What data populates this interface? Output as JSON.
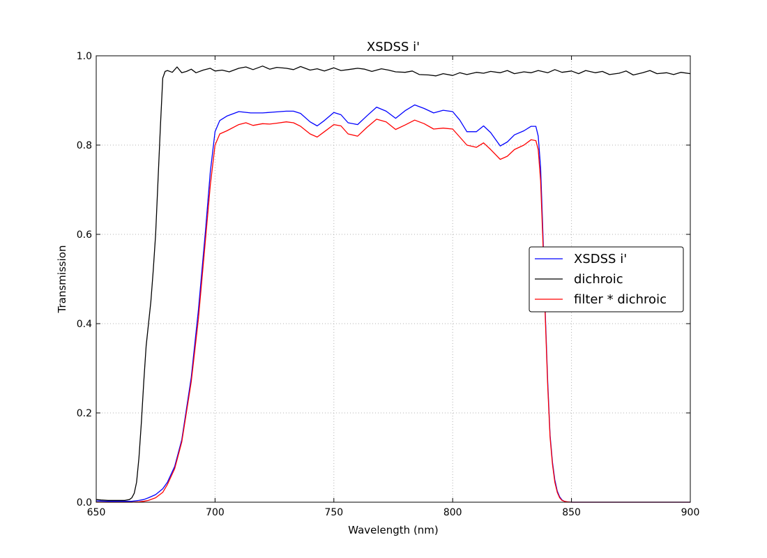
{
  "chart_data": {
    "type": "line",
    "title": "XSDSS i'",
    "xlabel": "Wavelength (nm)",
    "ylabel": "Transmission",
    "xlim": [
      650,
      900
    ],
    "ylim": [
      0.0,
      1.0
    ],
    "x_ticks": [
      650,
      700,
      750,
      800,
      850,
      900
    ],
    "x_tick_labels": [
      "650",
      "700",
      "750",
      "800",
      "850",
      "900"
    ],
    "y_ticks": [
      0.0,
      0.2,
      0.4,
      0.6,
      0.8,
      1.0
    ],
    "y_tick_labels": [
      "0.0",
      "0.2",
      "0.4",
      "0.6",
      "0.8",
      "1.0"
    ],
    "grid": true,
    "legend_position": "center-right",
    "series": [
      {
        "name": "XSDSS i'",
        "color": "#0000ff",
        "x": [
          650,
          655,
          660,
          665,
          668,
          670,
          672,
          675,
          678,
          680,
          683,
          686,
          690,
          693,
          696,
          698,
          700,
          702,
          705,
          710,
          715,
          720,
          725,
          730,
          733,
          736,
          740,
          743,
          746,
          750,
          753,
          756,
          760,
          764,
          768,
          772,
          776,
          780,
          784,
          788,
          792,
          796,
          800,
          803,
          806,
          810,
          813,
          816,
          820,
          823,
          826,
          830,
          833,
          835,
          836,
          837,
          838,
          839,
          840,
          841,
          842,
          843,
          844,
          845,
          846,
          847,
          848,
          850,
          860,
          870,
          880,
          890,
          900
        ],
        "y": [
          0.003,
          0.002,
          0.002,
          0.002,
          0.004,
          0.006,
          0.01,
          0.017,
          0.03,
          0.045,
          0.08,
          0.14,
          0.28,
          0.43,
          0.61,
          0.74,
          0.83,
          0.855,
          0.865,
          0.875,
          0.872,
          0.872,
          0.874,
          0.876,
          0.876,
          0.871,
          0.852,
          0.843,
          0.855,
          0.873,
          0.868,
          0.85,
          0.846,
          0.866,
          0.885,
          0.876,
          0.86,
          0.877,
          0.89,
          0.882,
          0.872,
          0.878,
          0.875,
          0.856,
          0.83,
          0.83,
          0.843,
          0.828,
          0.798,
          0.807,
          0.823,
          0.832,
          0.842,
          0.842,
          0.82,
          0.75,
          0.6,
          0.42,
          0.27,
          0.15,
          0.09,
          0.05,
          0.025,
          0.012,
          0.005,
          0.002,
          0.001,
          0.0,
          0.0,
          0.0,
          0.0,
          0.0,
          0.0
        ]
      },
      {
        "name": "dichroic",
        "color": "#000000",
        "x": [
          650,
          652,
          655,
          658,
          660,
          662,
          664,
          665,
          666,
          667,
          668,
          669,
          670,
          671,
          672,
          673,
          674,
          675,
          676,
          677,
          678,
          679,
          680,
          682,
          684,
          686,
          688,
          690,
          692,
          695,
          698,
          700,
          703,
          706,
          710,
          713,
          716,
          720,
          723,
          726,
          730,
          733,
          736,
          740,
          743,
          746,
          750,
          753,
          756,
          760,
          763,
          766,
          770,
          773,
          776,
          780,
          783,
          786,
          790,
          793,
          796,
          800,
          803,
          806,
          810,
          813,
          816,
          820,
          823,
          826,
          830,
          833,
          836,
          840,
          843,
          846,
          850,
          853,
          856,
          860,
          863,
          866,
          870,
          873,
          876,
          880,
          883,
          886,
          890,
          893,
          896,
          900
        ],
        "y": [
          0.006,
          0.005,
          0.004,
          0.004,
          0.004,
          0.004,
          0.006,
          0.01,
          0.02,
          0.045,
          0.1,
          0.18,
          0.27,
          0.35,
          0.4,
          0.45,
          0.52,
          0.6,
          0.72,
          0.84,
          0.95,
          0.965,
          0.967,
          0.963,
          0.975,
          0.962,
          0.965,
          0.97,
          0.962,
          0.968,
          0.972,
          0.966,
          0.968,
          0.964,
          0.972,
          0.975,
          0.969,
          0.977,
          0.97,
          0.974,
          0.972,
          0.969,
          0.976,
          0.968,
          0.971,
          0.966,
          0.973,
          0.967,
          0.969,
          0.972,
          0.97,
          0.965,
          0.971,
          0.968,
          0.964,
          0.963,
          0.966,
          0.958,
          0.957,
          0.955,
          0.96,
          0.956,
          0.962,
          0.958,
          0.963,
          0.961,
          0.965,
          0.962,
          0.967,
          0.96,
          0.964,
          0.962,
          0.967,
          0.962,
          0.969,
          0.963,
          0.966,
          0.96,
          0.967,
          0.962,
          0.965,
          0.958,
          0.961,
          0.966,
          0.957,
          0.962,
          0.967,
          0.96,
          0.962,
          0.958,
          0.963,
          0.96
        ]
      },
      {
        "name": "filter * dichroic",
        "color": "#ff0000",
        "x": [
          650,
          655,
          660,
          665,
          668,
          670,
          672,
          675,
          678,
          680,
          683,
          686,
          690,
          693,
          696,
          698,
          700,
          702,
          705,
          710,
          713,
          716,
          720,
          723,
          726,
          730,
          733,
          736,
          740,
          743,
          746,
          750,
          753,
          756,
          760,
          764,
          768,
          772,
          776,
          780,
          784,
          788,
          792,
          796,
          800,
          803,
          806,
          810,
          813,
          816,
          820,
          823,
          826,
          830,
          833,
          835,
          836,
          837,
          838,
          839,
          840,
          841,
          842,
          843,
          844,
          845,
          846,
          847,
          848,
          850,
          860,
          870,
          880,
          890,
          900
        ],
        "y": [
          0.0,
          0.0,
          0.0,
          0.0,
          0.001,
          0.002,
          0.004,
          0.01,
          0.022,
          0.04,
          0.075,
          0.135,
          0.27,
          0.41,
          0.59,
          0.71,
          0.8,
          0.825,
          0.832,
          0.846,
          0.85,
          0.844,
          0.848,
          0.847,
          0.849,
          0.852,
          0.85,
          0.842,
          0.825,
          0.818,
          0.83,
          0.846,
          0.843,
          0.825,
          0.82,
          0.84,
          0.858,
          0.852,
          0.835,
          0.845,
          0.856,
          0.848,
          0.836,
          0.838,
          0.836,
          0.818,
          0.8,
          0.795,
          0.805,
          0.79,
          0.768,
          0.775,
          0.79,
          0.8,
          0.812,
          0.81,
          0.79,
          0.72,
          0.58,
          0.41,
          0.26,
          0.145,
          0.085,
          0.045,
          0.022,
          0.01,
          0.004,
          0.002,
          0.001,
          0.0,
          0.0,
          0.0,
          0.0,
          0.0,
          0.0
        ]
      }
    ]
  }
}
